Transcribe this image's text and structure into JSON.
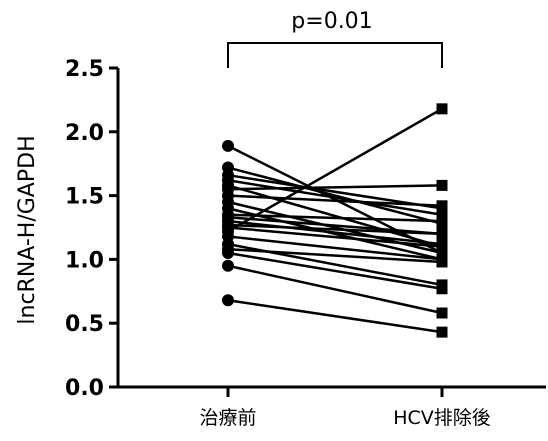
{
  "chart_data": {
    "type": "scatter",
    "subtype": "paired-before-after",
    "ylabel": "lncRNA-H/GAPDH",
    "ylim": [
      0,
      2.5
    ],
    "y_ticks": [
      {
        "value": 0,
        "label": "0.0"
      },
      {
        "value": 0.5,
        "label": "0.5"
      },
      {
        "value": 1,
        "label": "1.0"
      },
      {
        "value": 1.5,
        "label": "1.5"
      },
      {
        "value": 2,
        "label": "2.0"
      },
      {
        "value": 2.5,
        "label": "2.5"
      }
    ],
    "categories": [
      "治療前",
      "HCV排除後"
    ],
    "significance": {
      "label": "p=0.01"
    },
    "markers": [
      "circle",
      "square"
    ],
    "color": "#000000",
    "pairs": [
      [
        1.89,
        1.05
      ],
      [
        1.72,
        1.28
      ],
      [
        1.66,
        1.4
      ],
      [
        1.62,
        1.35
      ],
      [
        1.58,
        1.1
      ],
      [
        1.55,
        1.58
      ],
      [
        1.5,
        1.42
      ],
      [
        1.45,
        1.05
      ],
      [
        1.4,
        1.0
      ],
      [
        1.35,
        1.3
      ],
      [
        1.33,
        1.2
      ],
      [
        1.3,
        1.12
      ],
      [
        1.27,
        1.2
      ],
      [
        1.25,
        1.1
      ],
      [
        1.22,
        2.18
      ],
      [
        1.18,
        1.0
      ],
      [
        1.12,
        0.8
      ],
      [
        1.08,
        0.98
      ],
      [
        1.05,
        0.77
      ],
      [
        0.95,
        0.58
      ],
      [
        0.68,
        0.43
      ]
    ]
  }
}
